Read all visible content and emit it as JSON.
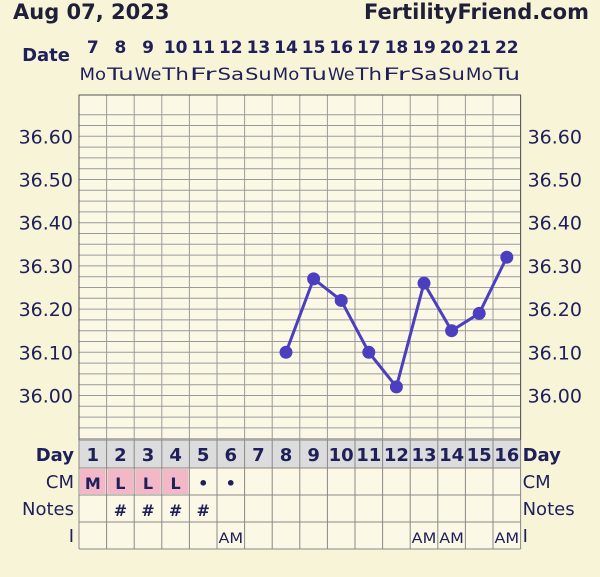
{
  "header": {
    "date": "Aug 07, 2023",
    "site": "FertilityFriend.com"
  },
  "labels": {
    "date": "Date",
    "day": "Day",
    "cm": "CM",
    "notes": "Notes",
    "intercourse": "I"
  },
  "chart_data": {
    "type": "line",
    "x": [
      1,
      2,
      3,
      4,
      5,
      6,
      7,
      8,
      9,
      10,
      11,
      12,
      13,
      14,
      15,
      16
    ],
    "dates": [
      "7",
      "8",
      "9",
      "10",
      "11",
      "12",
      "13",
      "14",
      "15",
      "16",
      "17",
      "18",
      "19",
      "20",
      "21",
      "22"
    ],
    "weekdays": [
      "Mo",
      "Tu",
      "We",
      "Th",
      "Fr",
      "Sa",
      "Su",
      "Mo",
      "Tu",
      "We",
      "Th",
      "Fr",
      "Sa",
      "Su",
      "Mo",
      "Tu"
    ],
    "series": [
      {
        "values": [
          null,
          null,
          null,
          null,
          null,
          null,
          null,
          36.1,
          36.27,
          36.22,
          36.1,
          36.02,
          36.26,
          36.15,
          36.19,
          36.32
        ]
      }
    ],
    "yticks": [
      "36.60",
      "36.50",
      "36.40",
      "36.30",
      "36.20",
      "36.10",
      "36.00"
    ],
    "ylim": [
      35.9,
      36.75
    ],
    "grid": true,
    "series_color": "#4b3fbf",
    "cm": [
      "M",
      "L",
      "L",
      "L",
      "•",
      "•",
      "",
      "",
      "",
      "",
      "",
      "",
      "",
      "",
      "",
      ""
    ],
    "cm_highlight": [
      true,
      true,
      true,
      true,
      false,
      false,
      false,
      false,
      false,
      false,
      false,
      false,
      false,
      false,
      false,
      false
    ],
    "notes": [
      "",
      "#",
      "#",
      "#",
      "#",
      "",
      "",
      "",
      "",
      "",
      "",
      "",
      "",
      "",
      "",
      ""
    ],
    "intercourse": [
      "",
      "",
      "",
      "",
      "",
      "AM",
      "",
      "",
      "",
      "",
      "",
      "",
      "AM",
      "AM",
      "",
      "AM"
    ]
  }
}
